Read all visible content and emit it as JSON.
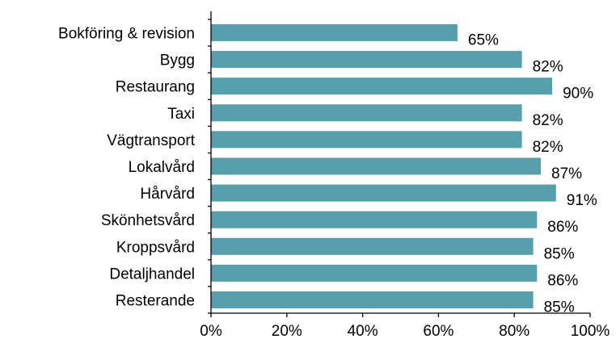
{
  "chart_data": {
    "type": "bar",
    "orientation": "horizontal",
    "categories": [
      "Bokföring & revision",
      "Bygg",
      "Restaurang",
      "Taxi",
      "Vägtransport",
      "Lokalvård",
      "Hårvård",
      "Skönhetsvård",
      "Kroppsvård",
      "Detaljhandel",
      "Resterande"
    ],
    "values": [
      65,
      82,
      90,
      82,
      82,
      87,
      91,
      86,
      85,
      86,
      85
    ],
    "value_labels": [
      "65%",
      "82%",
      "90%",
      "82%",
      "82%",
      "87%",
      "91%",
      "86%",
      "85%",
      "86%",
      "85%"
    ],
    "xlim": [
      0,
      100
    ],
    "x_ticks": [
      0,
      20,
      40,
      60,
      80,
      100
    ],
    "x_tick_labels": [
      "0%",
      "20%",
      "40%",
      "60%",
      "80%",
      "100%"
    ],
    "grid": false,
    "legend": "none",
    "bar_color": "#56a0ad",
    "axis_color": "#000000"
  }
}
